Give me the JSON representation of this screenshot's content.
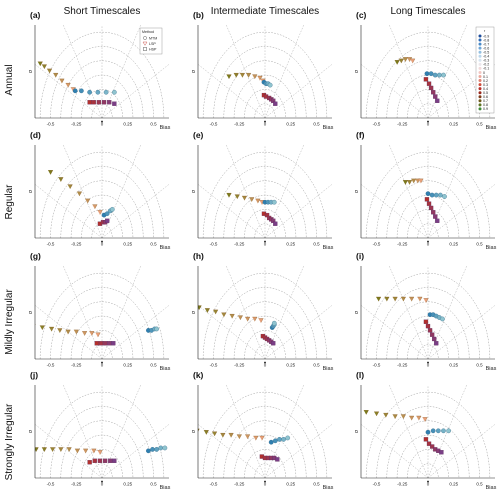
{
  "column_titles": [
    "Short Timescales",
    "Intermediate Timescales",
    "Long Timescales"
  ],
  "row_titles": [
    "Annual",
    "Regular",
    "Mildly Irregular",
    "Strongly Irregular"
  ],
  "panel_labels": [
    "(a)",
    "(b)",
    "(c)",
    "(d)",
    "(e)",
    "(f)",
    "(g)",
    "(h)",
    "(i)",
    "(j)",
    "(k)",
    "(l)"
  ],
  "axis": {
    "xlabel": "Bias",
    "ylabel": "σ",
    "xticks": [
      "-0.5",
      "-0.25",
      "0",
      "0.25",
      "0.5"
    ],
    "xtick_values": [
      -0.5,
      -0.25,
      0,
      0.25,
      0.5
    ],
    "arc_radii": [
      0.1,
      0.2,
      0.3,
      0.4,
      0.5,
      0.6
    ],
    "xlim": [
      -0.65,
      0.65
    ],
    "ylim": [
      0,
      0.65
    ]
  },
  "method_legend": {
    "title": "Method",
    "items": [
      {
        "label": "MTM",
        "shape": "circle"
      },
      {
        "label": "LSP",
        "shape": "triangle-down"
      },
      {
        "label": "HSP",
        "shape": "square"
      }
    ]
  },
  "r_legend": {
    "title": "r",
    "values": [
      "-0.9",
      "-0.8",
      "-0.7",
      "-0.6",
      "-0.5",
      "-0.4",
      "-0.3",
      "-0.2",
      "-0.1",
      "0",
      "0.1",
      "0.2",
      "0.3",
      "0.4",
      "0.5",
      "0.6",
      "0.7",
      "0.8",
      "0.9"
    ],
    "colors": [
      "#1f4e9c",
      "#2f6cb8",
      "#4a8ac8",
      "#6ea6d6",
      "#93c0e2",
      "#b9d6ec",
      "#d6e4f0",
      "#ece6ec",
      "#f1dada",
      "#f2c7c2",
      "#eba79c",
      "#e07f6f",
      "#d0503f",
      "#b8302a",
      "#9a2a1f",
      "#7f3b1a",
      "#6d5a1c",
      "#5f7524",
      "#3e8a3a"
    ]
  },
  "series_colors": {
    "MTM": "#4f9ea4",
    "LSP": "#d8651c",
    "HSP": "#7a3e86",
    "HSP_end": "#7a8a3a"
  },
  "chart_data": [
    {
      "panel": "(a)",
      "type": "scatter",
      "row": "Annual",
      "column": "Short Timescales",
      "MTM": [
        [
          -0.26,
          0.19
        ],
        [
          -0.2,
          0.19
        ],
        [
          -0.12,
          0.18
        ],
        [
          -0.04,
          0.18
        ],
        [
          0.04,
          0.18
        ],
        [
          0.12,
          0.18
        ]
      ],
      "LSP": [
        [
          -0.6,
          0.38
        ],
        [
          -0.56,
          0.36
        ],
        [
          -0.51,
          0.33
        ],
        [
          -0.45,
          0.3
        ],
        [
          -0.39,
          0.26
        ],
        [
          -0.33,
          0.23
        ],
        [
          -0.28,
          0.2
        ]
      ],
      "HSP": [
        [
          -0.12,
          0.11
        ],
        [
          -0.08,
          0.11
        ],
        [
          -0.03,
          0.11
        ],
        [
          0.02,
          0.11
        ],
        [
          0.07,
          0.11
        ],
        [
          0.12,
          0.1
        ]
      ]
    },
    {
      "panel": "(b)",
      "type": "scatter",
      "row": "Annual",
      "column": "Intermediate Timescales",
      "MTM": [
        [
          -0.01,
          0.25
        ],
        [
          0.01,
          0.24
        ],
        [
          0.03,
          0.24
        ],
        [
          0.05,
          0.23
        ]
      ],
      "LSP": [
        [
          -0.35,
          0.29
        ],
        [
          -0.28,
          0.3
        ],
        [
          -0.22,
          0.3
        ],
        [
          -0.16,
          0.3
        ],
        [
          -0.1,
          0.29
        ],
        [
          -0.05,
          0.28
        ],
        [
          -0.02,
          0.26
        ]
      ],
      "HSP": [
        [
          -0.01,
          0.16
        ],
        [
          0.01,
          0.15
        ],
        [
          0.04,
          0.14
        ],
        [
          0.06,
          0.13
        ],
        [
          0.08,
          0.12
        ],
        [
          0.1,
          0.1
        ]
      ]
    },
    {
      "panel": "(c)",
      "type": "scatter",
      "row": "Annual",
      "column": "Long Timescales",
      "MTM": [
        [
          -0.01,
          0.31
        ],
        [
          0.03,
          0.31
        ],
        [
          0.07,
          0.3
        ],
        [
          0.11,
          0.3
        ],
        [
          0.15,
          0.3
        ]
      ],
      "LSP": [
        [
          -0.3,
          0.39
        ],
        [
          -0.26,
          0.4
        ],
        [
          -0.22,
          0.41
        ],
        [
          -0.18,
          0.41
        ],
        [
          -0.15,
          0.4
        ]
      ],
      "HSP": [
        [
          -0.02,
          0.27
        ],
        [
          0.01,
          0.24
        ],
        [
          0.03,
          0.21
        ],
        [
          0.05,
          0.18
        ],
        [
          0.07,
          0.15
        ],
        [
          0.09,
          0.12
        ]
      ]
    },
    {
      "panel": "(d)",
      "type": "scatter",
      "row": "Regular",
      "column": "Short Timescales",
      "MTM": [
        [
          0.02,
          0.16
        ],
        [
          0.05,
          0.17
        ],
        [
          0.08,
          0.19
        ],
        [
          0.1,
          0.2
        ]
      ],
      "LSP": [
        [
          -0.5,
          0.46
        ],
        [
          -0.4,
          0.41
        ],
        [
          -0.31,
          0.36
        ],
        [
          -0.22,
          0.31
        ],
        [
          -0.14,
          0.26
        ],
        [
          -0.07,
          0.22
        ],
        [
          -0.02,
          0.18
        ]
      ],
      "HSP": [
        [
          -0.02,
          0.1
        ],
        [
          0.01,
          0.11
        ],
        [
          0.03,
          0.11
        ],
        [
          0.05,
          0.12
        ]
      ]
    },
    {
      "panel": "(e)",
      "type": "scatter",
      "row": "Regular",
      "column": "Intermediate Timescales",
      "MTM": [
        [
          0.0,
          0.25
        ],
        [
          0.03,
          0.25
        ],
        [
          0.06,
          0.25
        ],
        [
          0.09,
          0.25
        ]
      ],
      "LSP": [
        [
          -0.35,
          0.3
        ],
        [
          -0.27,
          0.29
        ],
        [
          -0.2,
          0.28
        ],
        [
          -0.13,
          0.27
        ],
        [
          -0.07,
          0.26
        ],
        [
          -0.03,
          0.25
        ]
      ],
      "HSP": [
        [
          -0.01,
          0.17
        ],
        [
          0.02,
          0.16
        ],
        [
          0.04,
          0.14
        ],
        [
          0.06,
          0.13
        ],
        [
          0.08,
          0.12
        ],
        [
          0.1,
          0.1
        ]
      ]
    },
    {
      "panel": "(f)",
      "type": "scatter",
      "row": "Regular",
      "column": "Long Timescales",
      "MTM": [
        [
          0.0,
          0.31
        ],
        [
          0.04,
          0.3
        ],
        [
          0.08,
          0.3
        ],
        [
          0.12,
          0.3
        ],
        [
          0.16,
          0.29
        ]
      ],
      "LSP": [
        [
          -0.22,
          0.39
        ],
        [
          -0.18,
          0.39
        ],
        [
          -0.14,
          0.4
        ],
        [
          -0.1,
          0.4
        ],
        [
          -0.07,
          0.4
        ]
      ],
      "HSP": [
        [
          -0.01,
          0.27
        ],
        [
          0.01,
          0.24
        ],
        [
          0.03,
          0.21
        ],
        [
          0.05,
          0.18
        ],
        [
          0.07,
          0.15
        ],
        [
          0.09,
          0.12
        ]
      ]
    },
    {
      "panel": "(g)",
      "type": "scatter",
      "row": "Mildly Irregular",
      "column": "Short Timescales",
      "MTM": [
        [
          0.45,
          0.2
        ],
        [
          0.48,
          0.2
        ],
        [
          0.51,
          0.21
        ],
        [
          0.53,
          0.21
        ]
      ],
      "LSP": [
        [
          -0.67,
          0.23
        ],
        [
          -0.58,
          0.22
        ],
        [
          -0.49,
          0.21
        ],
        [
          -0.41,
          0.2
        ],
        [
          -0.33,
          0.19
        ],
        [
          -0.25,
          0.19
        ],
        [
          -0.17,
          0.18
        ],
        [
          -0.1,
          0.18
        ],
        [
          -0.04,
          0.17
        ]
      ],
      "HSP": [
        [
          -0.05,
          0.11
        ],
        [
          -0.01,
          0.11
        ],
        [
          0.03,
          0.11
        ],
        [
          0.07,
          0.11
        ],
        [
          0.11,
          0.11
        ]
      ]
    },
    {
      "panel": "(h)",
      "type": "scatter",
      "row": "Mildly Irregular",
      "column": "Intermediate Timescales",
      "MTM": [
        [
          0.07,
          0.22
        ],
        [
          0.08,
          0.23
        ],
        [
          0.09,
          0.24
        ],
        [
          0.09,
          0.25
        ]
      ],
      "LSP": [
        [
          -0.64,
          0.36
        ],
        [
          -0.56,
          0.34
        ],
        [
          -0.48,
          0.33
        ],
        [
          -0.4,
          0.31
        ],
        [
          -0.32,
          0.3
        ],
        [
          -0.24,
          0.29
        ],
        [
          -0.17,
          0.28
        ],
        [
          -0.1,
          0.28
        ],
        [
          -0.04,
          0.27
        ]
      ],
      "HSP": [
        [
          -0.02,
          0.16
        ],
        [
          0.0,
          0.15
        ],
        [
          0.02,
          0.14
        ],
        [
          0.04,
          0.13
        ],
        [
          0.06,
          0.12
        ],
        [
          0.08,
          0.11
        ]
      ]
    },
    {
      "panel": "(i)",
      "type": "scatter",
      "row": "Mildly Irregular",
      "column": "Long Timescales",
      "MTM": [
        [
          0.02,
          0.31
        ],
        [
          0.05,
          0.31
        ],
        [
          0.08,
          0.3
        ],
        [
          0.11,
          0.29
        ],
        [
          0.14,
          0.28
        ]
      ],
      "LSP": [
        [
          -0.48,
          0.42
        ],
        [
          -0.4,
          0.42
        ],
        [
          -0.32,
          0.42
        ],
        [
          -0.24,
          0.42
        ],
        [
          -0.16,
          0.42
        ],
        [
          -0.08,
          0.42
        ],
        [
          -0.02,
          0.41
        ]
      ],
      "HSP": [
        [
          -0.02,
          0.26
        ],
        [
          0.0,
          0.23
        ],
        [
          0.02,
          0.2
        ],
        [
          0.04,
          0.17
        ],
        [
          0.06,
          0.14
        ],
        [
          0.08,
          0.11
        ]
      ]
    },
    {
      "panel": "(j)",
      "type": "scatter",
      "row": "Strongly Irregular",
      "column": "Short Timescales",
      "MTM": [
        [
          0.45,
          0.19
        ],
        [
          0.49,
          0.2
        ],
        [
          0.53,
          0.2
        ],
        [
          0.57,
          0.21
        ],
        [
          0.61,
          0.21
        ]
      ],
      "LSP": [
        [
          -0.64,
          0.2
        ],
        [
          -0.56,
          0.2
        ],
        [
          -0.48,
          0.2
        ],
        [
          -0.4,
          0.2
        ],
        [
          -0.32,
          0.2
        ],
        [
          -0.24,
          0.19
        ],
        [
          -0.16,
          0.19
        ],
        [
          -0.08,
          0.19
        ],
        [
          -0.02,
          0.18
        ]
      ],
      "HSP": [
        [
          -0.12,
          0.11
        ],
        [
          -0.07,
          0.12
        ],
        [
          -0.02,
          0.12
        ],
        [
          0.03,
          0.12
        ],
        [
          0.08,
          0.12
        ],
        [
          0.12,
          0.12
        ]
      ]
    },
    {
      "panel": "(k)",
      "type": "scatter",
      "row": "Strongly Irregular",
      "column": "Intermediate Timescales",
      "MTM": [
        [
          0.06,
          0.25
        ],
        [
          0.1,
          0.26
        ],
        [
          0.14,
          0.27
        ],
        [
          0.18,
          0.27
        ],
        [
          0.22,
          0.28
        ]
      ],
      "LSP": [
        [
          -0.66,
          0.33
        ],
        [
          -0.57,
          0.32
        ],
        [
          -0.49,
          0.31
        ],
        [
          -0.41,
          0.3
        ],
        [
          -0.33,
          0.3
        ],
        [
          -0.25,
          0.29
        ],
        [
          -0.17,
          0.29
        ],
        [
          -0.09,
          0.28
        ],
        [
          -0.03,
          0.28
        ]
      ],
      "HSP": [
        [
          -0.03,
          0.15
        ],
        [
          0.0,
          0.14
        ],
        [
          0.03,
          0.14
        ],
        [
          0.06,
          0.14
        ],
        [
          0.09,
          0.14
        ],
        [
          0.12,
          0.13
        ]
      ]
    },
    {
      "panel": "(l)",
      "type": "scatter",
      "row": "Strongly Irregular",
      "column": "Long Timescales",
      "MTM": [
        [
          0.0,
          0.32
        ],
        [
          0.05,
          0.33
        ],
        [
          0.1,
          0.33
        ],
        [
          0.15,
          0.33
        ],
        [
          0.2,
          0.33
        ]
      ],
      "LSP": [
        [
          -0.6,
          0.46
        ],
        [
          -0.5,
          0.45
        ],
        [
          -0.41,
          0.44
        ],
        [
          -0.32,
          0.43
        ],
        [
          -0.24,
          0.43
        ],
        [
          -0.16,
          0.42
        ],
        [
          -0.09,
          0.42
        ],
        [
          -0.03,
          0.41
        ]
      ],
      "HSP": [
        [
          -0.02,
          0.27
        ],
        [
          0.01,
          0.24
        ],
        [
          0.04,
          0.22
        ],
        [
          0.07,
          0.2
        ],
        [
          0.1,
          0.19
        ],
        [
          0.13,
          0.18
        ]
      ]
    }
  ]
}
